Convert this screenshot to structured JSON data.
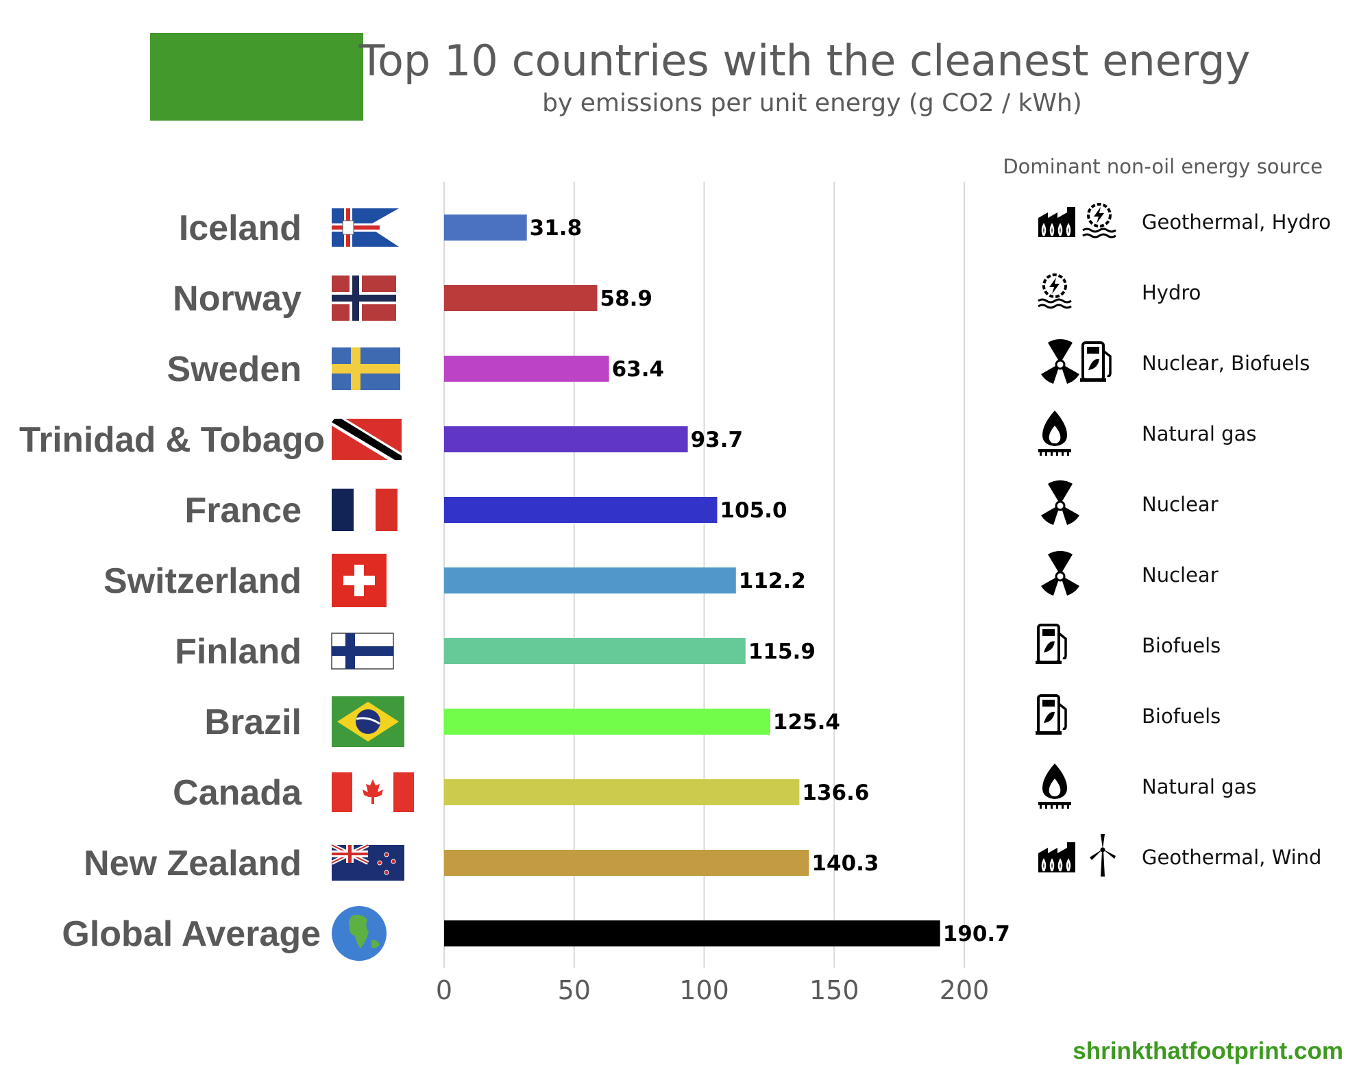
{
  "chart_data": {
    "type": "bar",
    "orientation": "horizontal",
    "title": "Top 10 countries with the cleanest energy",
    "subtitle": "by emissions per unit energy (g CO2 / kWh)",
    "source_header": "Dominant non-oil energy source",
    "categories": [
      "Iceland",
      "Norway",
      "Sweden",
      "Trinidad & Tobago",
      "France",
      "Switzerland",
      "Finland",
      "Brazil",
      "Canada",
      "New Zealand",
      "Global Average"
    ],
    "values": [
      31.8,
      58.9,
      63.4,
      93.7,
      105.0,
      112.2,
      115.9,
      125.4,
      136.6,
      140.3,
      190.7
    ],
    "value_labels": [
      "31.8",
      "58.9",
      "63.4",
      "93.7",
      "105.0",
      "112.2",
      "115.9",
      "125.4",
      "136.6",
      "140.3",
      "190.7"
    ],
    "bar_colors": [
      "#4a72c0",
      "#bb3b3b",
      "#bd43c6",
      "#6036c6",
      "#3233c9",
      "#5197c9",
      "#66c998",
      "#72fd4a",
      "#cccb4d",
      "#c39b42",
      "#000000"
    ],
    "flags": [
      "iceland-flag",
      "norway-flag",
      "sweden-flag",
      "trinidad-tobago-flag",
      "france-flag",
      "switzerland-flag",
      "finland-flag",
      "brazil-flag",
      "canada-flag",
      "new-zealand-flag",
      "globe-icon"
    ],
    "energy_sources": [
      {
        "label": "Geothermal, Hydro",
        "icons": [
          "geothermal-plant-icon",
          "hydro-icon"
        ]
      },
      {
        "label": "Hydro",
        "icons": [
          "hydro-icon"
        ]
      },
      {
        "label": "Nuclear, Biofuels",
        "icons": [
          "nuclear-icon",
          "biofuel-pump-icon"
        ]
      },
      {
        "label": "Natural gas",
        "icons": [
          "gas-flame-icon"
        ]
      },
      {
        "label": "Nuclear",
        "icons": [
          "nuclear-icon"
        ]
      },
      {
        "label": "Nuclear",
        "icons": [
          "nuclear-icon"
        ]
      },
      {
        "label": "Biofuels",
        "icons": [
          "biofuel-pump-icon"
        ]
      },
      {
        "label": "Biofuels",
        "icons": [
          "biofuel-pump-icon"
        ]
      },
      {
        "label": "Natural gas",
        "icons": [
          "gas-flame-icon"
        ]
      },
      {
        "label": "Geothermal, Wind",
        "icons": [
          "geothermal-plant-icon",
          "wind-turbine-icon"
        ]
      }
    ],
    "xticks": [
      0,
      50,
      100,
      150,
      200
    ],
    "xtick_labels": [
      "0",
      "50",
      "100",
      "150",
      "200"
    ],
    "xlim": [
      0,
      215
    ],
    "grid": "vertical"
  },
  "footer": "shrinkthatfootprint.com",
  "colors": {
    "brand_green": "#43992b",
    "gridline": "#d9d9d9",
    "text_gray": "#5b5b5b"
  }
}
